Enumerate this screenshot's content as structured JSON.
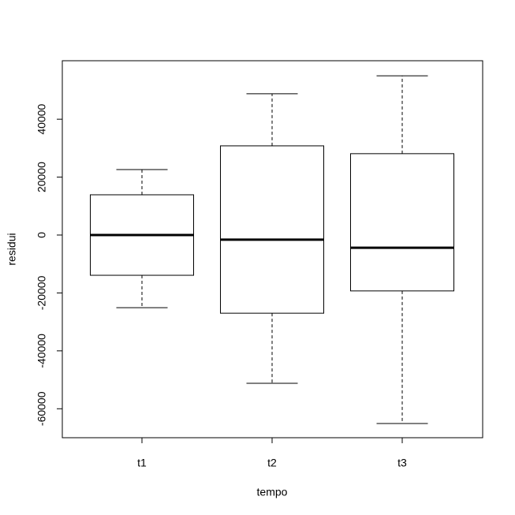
{
  "chart_data": {
    "type": "box",
    "x_label": "tempo",
    "y_label": "residui",
    "categories": [
      "t1",
      "t2",
      "t3"
    ],
    "boxes": [
      {
        "whisker_low": -25100,
        "q1": -13900,
        "median": 0,
        "q3": 13900,
        "whisker_high": 22600
      },
      {
        "whisker_low": -51200,
        "q1": -27000,
        "median": -1600,
        "q3": 30800,
        "whisker_high": 48800
      },
      {
        "whisker_low": -65100,
        "q1": -19300,
        "median": -4400,
        "q3": 28100,
        "whisker_high": 55000
      }
    ],
    "color": "#000000",
    "ylim": [
      -70000,
      60200
    ],
    "yticks": [
      -60000,
      -40000,
      -20000,
      0,
      20000,
      40000
    ]
  }
}
